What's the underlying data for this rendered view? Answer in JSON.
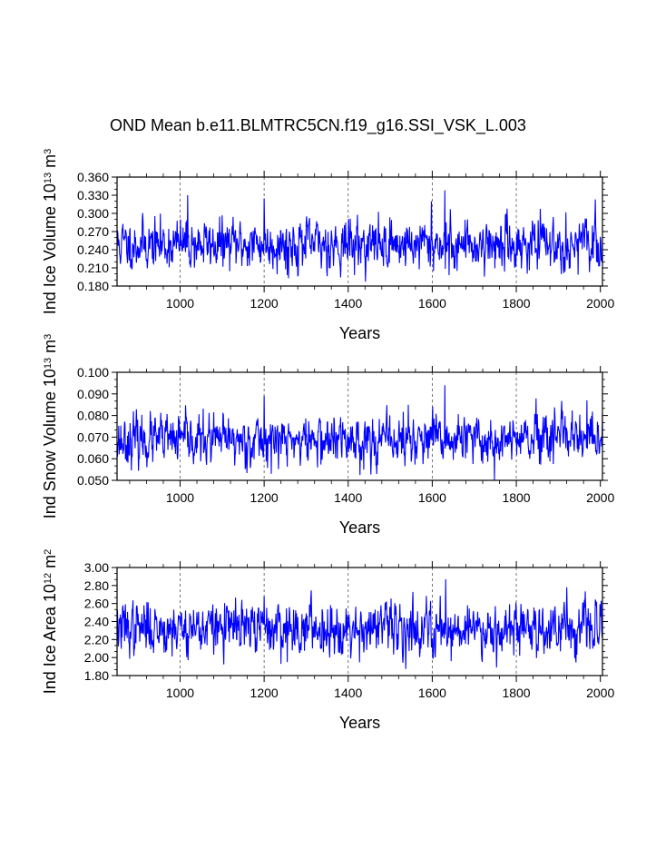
{
  "title": "OND Mean b.e11.BLMTRC5CN.f19_g16.SSI_VSK_L.003",
  "series_color": "#0000ff",
  "chart_data": [
    {
      "type": "line",
      "name": "ice-volume",
      "ylabel_main": "Ind Ice Volume 10",
      "ylabel_exp": "13",
      "ylabel_unit": " m",
      "ylabel_unit_exp": "3",
      "xlabel": "Years",
      "xlim": [
        850,
        2005
      ],
      "ylim": [
        0.18,
        0.36
      ],
      "yticks": [
        "0.180",
        "0.210",
        "0.240",
        "0.270",
        "0.300",
        "0.330",
        "0.360"
      ],
      "ytick_values": [
        0.18,
        0.21,
        0.24,
        0.27,
        0.3,
        0.33,
        0.36
      ],
      "xticks": [
        "1000",
        "1200",
        "1400",
        "1600",
        "1800",
        "2000"
      ],
      "xtick_values": [
        1000,
        1200,
        1400,
        1600,
        1800,
        2000
      ],
      "gridlines_x": [
        1000,
        1200,
        1400,
        1600,
        1800
      ],
      "mean": 0.249,
      "sd": 0.02,
      "seed": 11,
      "spikes": [
        [
          1018,
          0.33
        ],
        [
          1200,
          0.325
        ],
        [
          1630,
          0.338
        ],
        [
          1598,
          0.32
        ],
        [
          1258,
          0.193
        ],
        [
          1640,
          0.198
        ]
      ]
    },
    {
      "type": "line",
      "name": "snow-volume",
      "ylabel_main": "Ind Snow Volume 10",
      "ylabel_exp": "13",
      "ylabel_unit": " m",
      "ylabel_unit_exp": "3",
      "xlabel": "Years",
      "xlim": [
        850,
        2005
      ],
      "ylim": [
        0.05,
        0.1
      ],
      "yticks": [
        "0.050",
        "0.060",
        "0.070",
        "0.080",
        "0.090",
        "0.100"
      ],
      "ytick_values": [
        0.05,
        0.06,
        0.07,
        0.08,
        0.09,
        0.1
      ],
      "xticks": [
        "1000",
        "1200",
        "1400",
        "1600",
        "1800",
        "2000"
      ],
      "xtick_values": [
        1000,
        1200,
        1400,
        1600,
        1800,
        2000
      ],
      "gridlines_x": [
        1000,
        1200,
        1400,
        1600,
        1800
      ],
      "mean": 0.0685,
      "sd": 0.0055,
      "seed": 23,
      "spikes": [
        [
          1200,
          0.089
        ],
        [
          1630,
          0.094
        ],
        [
          1968,
          0.087
        ],
        [
          1748,
          0.05
        ],
        [
          1543,
          0.085
        ]
      ]
    },
    {
      "type": "line",
      "name": "ice-area",
      "ylabel_main": "Ind Ice Area 10",
      "ylabel_exp": "12",
      "ylabel_unit": " m",
      "ylabel_unit_exp": "2",
      "xlabel": "Years",
      "xlim": [
        850,
        2005
      ],
      "ylim": [
        1.8,
        3.0
      ],
      "yticks": [
        "1.80",
        "2.00",
        "2.20",
        "2.40",
        "2.60",
        "2.80",
        "3.00"
      ],
      "ytick_values": [
        1.8,
        2.0,
        2.2,
        2.4,
        2.6,
        2.8,
        3.0
      ],
      "xticks": [
        "1000",
        "1200",
        "1400",
        "1600",
        "1800",
        "2000"
      ],
      "xtick_values": [
        1000,
        1200,
        1400,
        1600,
        1800,
        2000
      ],
      "gridlines_x": [
        1000,
        1200,
        1400,
        1600,
        1800
      ],
      "mean": 2.33,
      "sd": 0.14,
      "seed": 37,
      "spikes": [
        [
          1632,
          2.87
        ],
        [
          1200,
          2.68
        ],
        [
          1920,
          2.78
        ],
        [
          1255,
          1.95
        ],
        [
          1645,
          1.96
        ]
      ]
    }
  ]
}
